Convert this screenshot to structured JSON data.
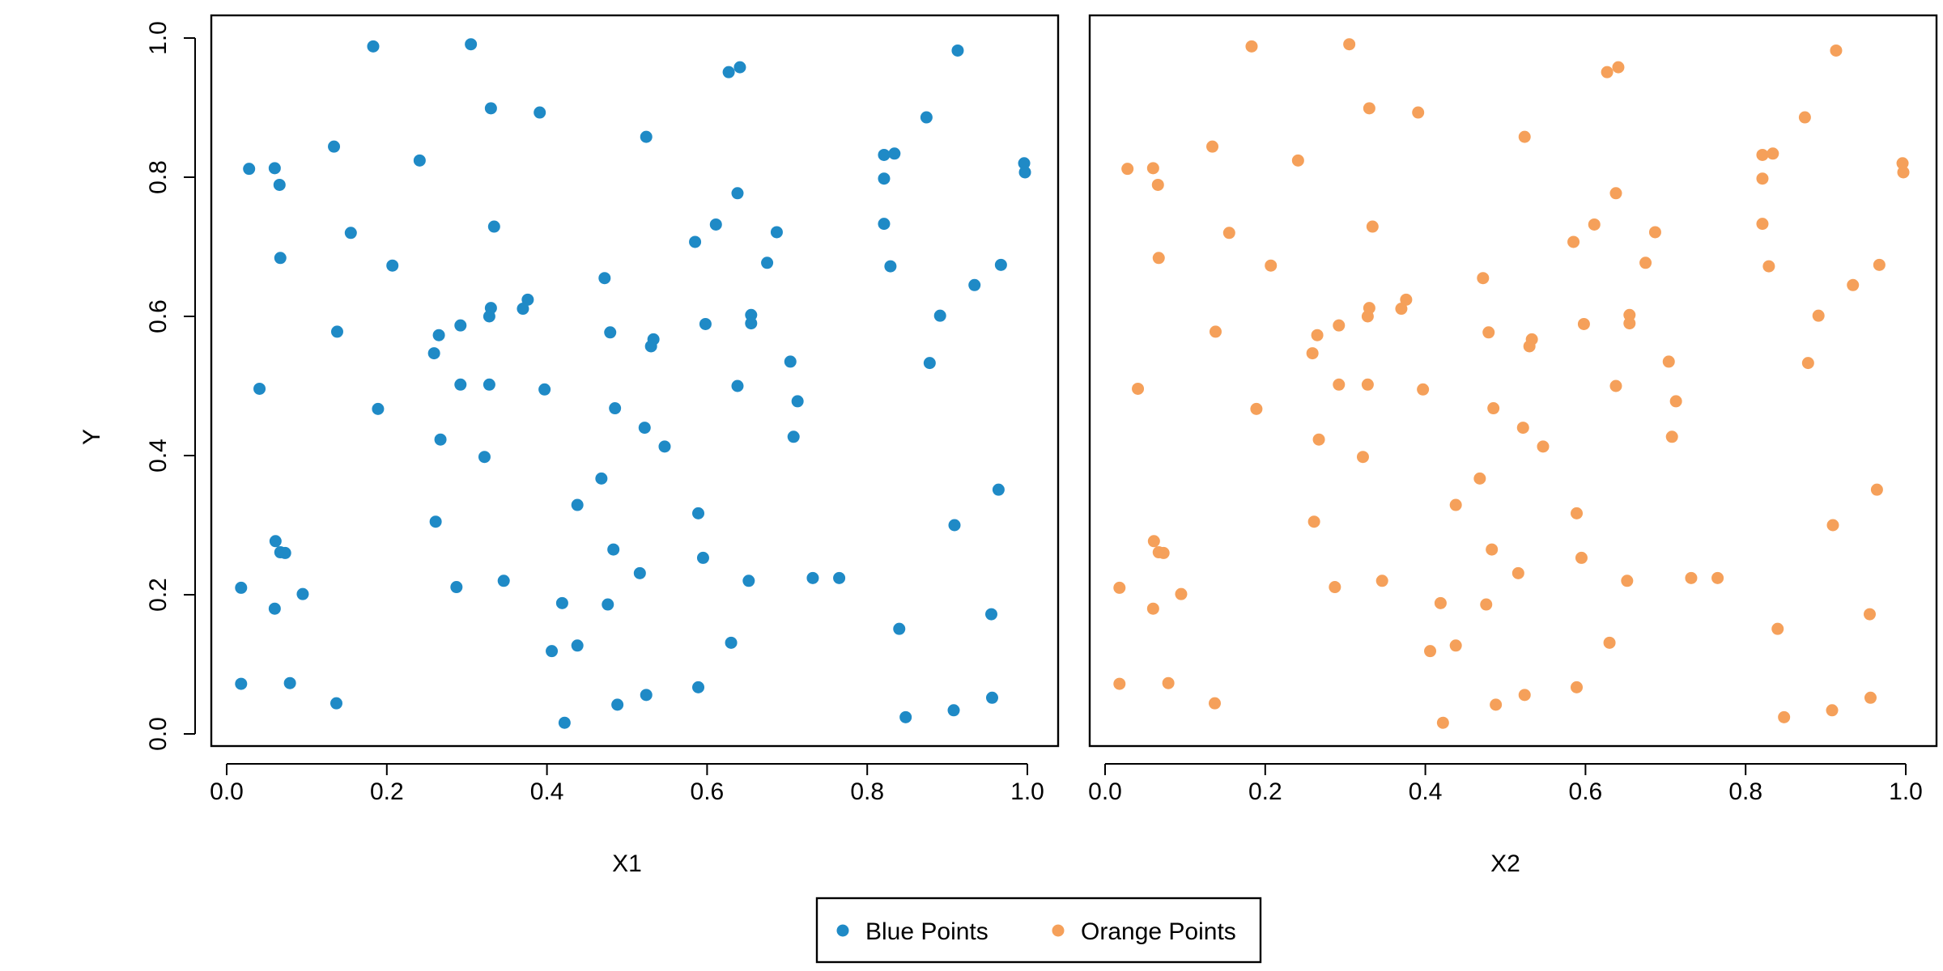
{
  "chart_data": {
    "type": "scatter",
    "y_label": "Y",
    "y_ticks": [
      "0.0",
      "0.2",
      "0.4",
      "0.6",
      "0.8",
      "1.0"
    ],
    "ylim": [
      0.0,
      1.0
    ],
    "x_ticks": [
      "0.0",
      "0.2",
      "0.4",
      "0.6",
      "0.8",
      "1.0"
    ],
    "xlim": [
      0.0,
      1.0
    ],
    "grid": false,
    "legend_position": "bottom-center",
    "legend": [
      {
        "label": "Blue Points",
        "color": "#1f8ac6"
      },
      {
        "label": "Orange Points",
        "color": "#f5a05a"
      }
    ],
    "panels": [
      {
        "x_label": "X1",
        "series_label": "Blue Points",
        "color": "#1f8ac6"
      },
      {
        "x_label": "X2",
        "series_label": "Orange Points",
        "color": "#f5a05a"
      }
    ],
    "points": [
      [
        0.183,
        0.988
      ],
      [
        0.305,
        0.991
      ],
      [
        0.627,
        0.951
      ],
      [
        0.641,
        0.958
      ],
      [
        0.913,
        0.982
      ],
      [
        0.33,
        0.899
      ],
      [
        0.391,
        0.893
      ],
      [
        0.524,
        0.858
      ],
      [
        0.874,
        0.886
      ],
      [
        0.134,
        0.844
      ],
      [
        0.241,
        0.824
      ],
      [
        0.028,
        0.812
      ],
      [
        0.06,
        0.813
      ],
      [
        0.821,
        0.832
      ],
      [
        0.834,
        0.834
      ],
      [
        0.996,
        0.82
      ],
      [
        0.997,
        0.807
      ],
      [
        0.066,
        0.789
      ],
      [
        0.821,
        0.798
      ],
      [
        0.638,
        0.777
      ],
      [
        0.155,
        0.72
      ],
      [
        0.334,
        0.729
      ],
      [
        0.611,
        0.732
      ],
      [
        0.687,
        0.721
      ],
      [
        0.821,
        0.733
      ],
      [
        0.585,
        0.707
      ],
      [
        0.067,
        0.684
      ],
      [
        0.207,
        0.673
      ],
      [
        0.675,
        0.677
      ],
      [
        0.829,
        0.672
      ],
      [
        0.967,
        0.674
      ],
      [
        0.472,
        0.655
      ],
      [
        0.934,
        0.645
      ],
      [
        0.376,
        0.624
      ],
      [
        0.33,
        0.612
      ],
      [
        0.37,
        0.611
      ],
      [
        0.328,
        0.6
      ],
      [
        0.655,
        0.602
      ],
      [
        0.655,
        0.59
      ],
      [
        0.891,
        0.601
      ],
      [
        0.138,
        0.578
      ],
      [
        0.265,
        0.573
      ],
      [
        0.292,
        0.587
      ],
      [
        0.479,
        0.577
      ],
      [
        0.533,
        0.567
      ],
      [
        0.598,
        0.589
      ],
      [
        0.259,
        0.547
      ],
      [
        0.53,
        0.557
      ],
      [
        0.704,
        0.535
      ],
      [
        0.878,
        0.533
      ],
      [
        0.041,
        0.496
      ],
      [
        0.292,
        0.502
      ],
      [
        0.328,
        0.502
      ],
      [
        0.397,
        0.495
      ],
      [
        0.638,
        0.5
      ],
      [
        0.189,
        0.467
      ],
      [
        0.485,
        0.468
      ],
      [
        0.713,
        0.478
      ],
      [
        0.522,
        0.44
      ],
      [
        0.267,
        0.423
      ],
      [
        0.708,
        0.427
      ],
      [
        0.547,
        0.413
      ],
      [
        0.322,
        0.398
      ],
      [
        0.468,
        0.367
      ],
      [
        0.964,
        0.351
      ],
      [
        0.438,
        0.329
      ],
      [
        0.589,
        0.317
      ],
      [
        0.261,
        0.305
      ],
      [
        0.909,
        0.3
      ],
      [
        0.061,
        0.277
      ],
      [
        0.067,
        0.261
      ],
      [
        0.073,
        0.26
      ],
      [
        0.483,
        0.265
      ],
      [
        0.595,
        0.253
      ],
      [
        0.516,
        0.231
      ],
      [
        0.732,
        0.224
      ],
      [
        0.765,
        0.224
      ],
      [
        0.652,
        0.22
      ],
      [
        0.346,
        0.22
      ],
      [
        0.287,
        0.211
      ],
      [
        0.018,
        0.21
      ],
      [
        0.095,
        0.201
      ],
      [
        0.419,
        0.188
      ],
      [
        0.476,
        0.186
      ],
      [
        0.06,
        0.18
      ],
      [
        0.955,
        0.172
      ],
      [
        0.84,
        0.151
      ],
      [
        0.63,
        0.131
      ],
      [
        0.438,
        0.127
      ],
      [
        0.406,
        0.119
      ],
      [
        0.079,
        0.073
      ],
      [
        0.018,
        0.072
      ],
      [
        0.589,
        0.067
      ],
      [
        0.524,
        0.056
      ],
      [
        0.956,
        0.052
      ],
      [
        0.137,
        0.044
      ],
      [
        0.488,
        0.042
      ],
      [
        0.908,
        0.034
      ],
      [
        0.848,
        0.024
      ],
      [
        0.422,
        0.016
      ]
    ]
  }
}
